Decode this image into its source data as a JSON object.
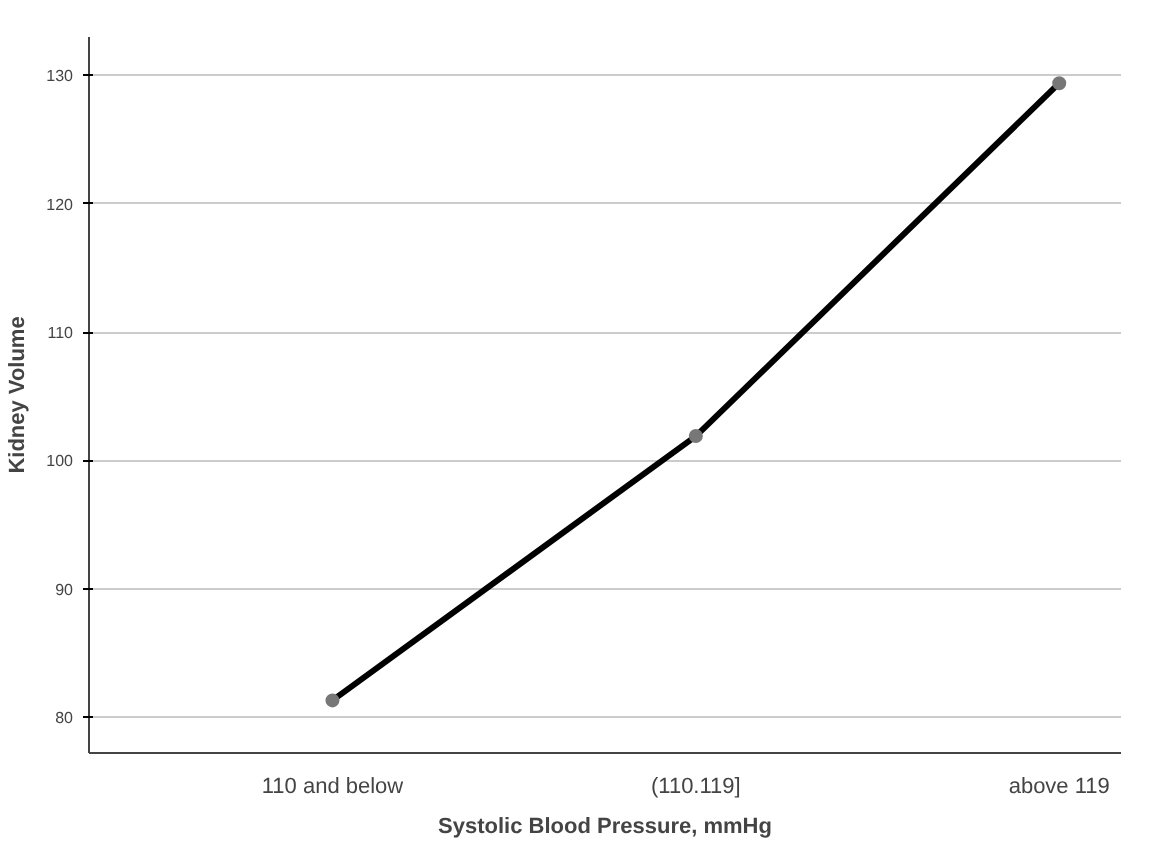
{
  "chart_data": {
    "type": "line",
    "xlabel": "Systolic Blood Pressure, mmHg",
    "ylabel": "Kidney Volume",
    "categories": [
      "110 and below",
      "(110.119]",
      "above 119"
    ],
    "series": [
      {
        "color": "#000000",
        "values": [
          81.3,
          101.9,
          129.4
        ]
      }
    ],
    "ylim": [
      77.2,
      133
    ],
    "yticks": [
      80,
      90,
      100,
      110,
      120,
      130
    ],
    "grid": "y",
    "marker": "circle",
    "line_style": "solid"
  }
}
